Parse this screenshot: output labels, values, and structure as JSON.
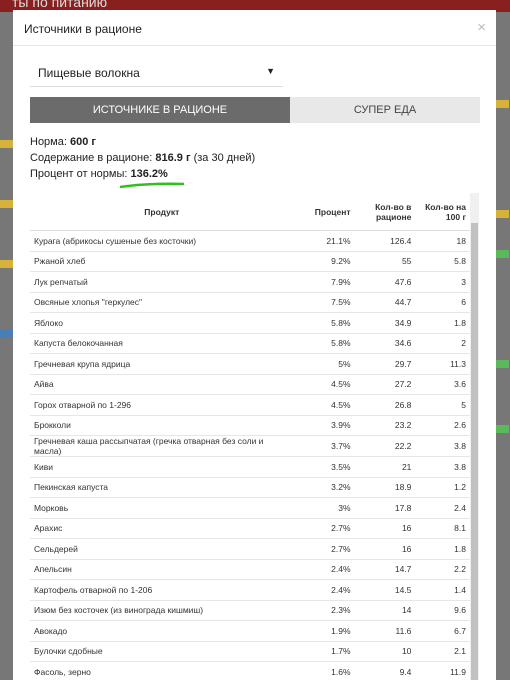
{
  "background": {
    "header": "ты по питанию"
  },
  "modal": {
    "title": "Источники в рационе",
    "close": "×",
    "select": "Пищевые волокна",
    "tabs": [
      "ИСТОЧНИКЕ В РАЦИОНЕ",
      "СУПЕР ЕДА"
    ],
    "summary": {
      "norm_label": "Норма:",
      "norm_value": "600 г",
      "content_label": "Содержание в рационе:",
      "content_value": "816.9 г",
      "content_note": "(за 30 дней)",
      "percent_label": "Процент от нормы:",
      "percent_value": "136.2%"
    },
    "table": {
      "headers": [
        "Продукт",
        "Процент",
        "Кол-во в рационе",
        "Кол-во на 100 г"
      ],
      "rows": [
        [
          "Курага (абрикосы сушеные без косточки)",
          "21.1%",
          "126.4",
          "18"
        ],
        [
          "Ржаной хлеб",
          "9.2%",
          "55",
          "5.8"
        ],
        [
          "Лук репчатый",
          "7.9%",
          "47.6",
          "3"
        ],
        [
          "Овсяные хлопья \"геркулес\"",
          "7.5%",
          "44.7",
          "6"
        ],
        [
          "Яблоко",
          "5.8%",
          "34.9",
          "1.8"
        ],
        [
          "Капуста белокочанная",
          "5.8%",
          "34.6",
          "2"
        ],
        [
          "Гречневая крупа ядрица",
          "5%",
          "29.7",
          "11.3"
        ],
        [
          "Айва",
          "4.5%",
          "27.2",
          "3.6"
        ],
        [
          "Горох отварной по 1-296",
          "4.5%",
          "26.8",
          "5"
        ],
        [
          "Брокколи",
          "3.9%",
          "23.2",
          "2.6"
        ],
        [
          "Гречневая каша рассыпчатая (гречка отварная без соли и масла)",
          "3.7%",
          "22.2",
          "3.8"
        ],
        [
          "Киви",
          "3.5%",
          "21",
          "3.8"
        ],
        [
          "Пекинская капуста",
          "3.2%",
          "18.9",
          "1.2"
        ],
        [
          "Морковь",
          "3%",
          "17.8",
          "2.4"
        ],
        [
          "Арахис",
          "2.7%",
          "16",
          "8.1"
        ],
        [
          "Сельдерей",
          "2.7%",
          "16",
          "1.8"
        ],
        [
          "Апельсин",
          "2.4%",
          "14.7",
          "2.2"
        ],
        [
          "Картофель отварной по 1-206",
          "2.4%",
          "14.5",
          "1.4"
        ],
        [
          "Изюм без косточек (из винограда кишмиш)",
          "2.3%",
          "14",
          "9.6"
        ],
        [
          "Авокадо",
          "1.9%",
          "11.6",
          "6.7"
        ],
        [
          "Булочки сдобные",
          "1.7%",
          "10",
          "2.1"
        ],
        [
          "Фасоль, зерно",
          "1.6%",
          "9.4",
          "11.9"
        ]
      ]
    }
  }
}
